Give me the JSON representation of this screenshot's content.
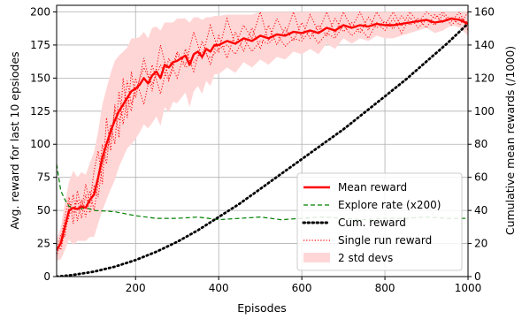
{
  "chart_data": {
    "type": "line",
    "xlabel": "Episodes",
    "ylabel": "Avg. reward for last 10 epsiodes",
    "y2label": "Cumulative mean rewards (/1000)",
    "xlim": [
      10,
      1000
    ],
    "ylim": [
      0,
      205
    ],
    "y2lim": [
      0,
      164
    ],
    "xticks": [
      200,
      400,
      600,
      800,
      1000
    ],
    "yticks": [
      0,
      25,
      50,
      75,
      100,
      125,
      150,
      175,
      200
    ],
    "y2ticks": [
      0,
      20,
      40,
      60,
      80,
      100,
      120,
      140,
      160
    ],
    "grid": true,
    "legend_placement": "lower-right",
    "legend": [
      {
        "name": "Mean reward",
        "style": "solid-thick",
        "color": "#ff0000"
      },
      {
        "name": "Explore rate (x200)",
        "style": "dashed",
        "color": "#008000"
      },
      {
        "name": "Cum. reward",
        "style": "dotted-thick",
        "color": "#000000"
      },
      {
        "name": "Single run reward",
        "style": "dotted",
        "color": "#ff0000"
      },
      {
        "name": "2 std devs",
        "style": "band",
        "color": "#ffd6d6"
      }
    ],
    "series": [
      {
        "name": "Mean reward",
        "axis": "left",
        "x": [
          10,
          20,
          30,
          40,
          50,
          60,
          70,
          80,
          90,
          100,
          110,
          120,
          130,
          140,
          150,
          160,
          170,
          180,
          190,
          200,
          210,
          220,
          230,
          240,
          250,
          260,
          270,
          280,
          290,
          300,
          310,
          320,
          330,
          340,
          350,
          360,
          370,
          380,
          390,
          400,
          420,
          440,
          460,
          480,
          500,
          520,
          540,
          560,
          580,
          600,
          620,
          640,
          660,
          680,
          700,
          720,
          740,
          760,
          780,
          800,
          820,
          840,
          860,
          880,
          900,
          920,
          940,
          960,
          980,
          1000
        ],
        "values": [
          20,
          25,
          38,
          50,
          52,
          51,
          53,
          52,
          58,
          62,
          75,
          90,
          100,
          110,
          118,
          125,
          130,
          135,
          140,
          142,
          145,
          150,
          146,
          152,
          155,
          150,
          160,
          158,
          162,
          163,
          165,
          167,
          160,
          168,
          170,
          166,
          172,
          170,
          175,
          175,
          178,
          176,
          180,
          178,
          182,
          180,
          183,
          182,
          185,
          184,
          186,
          184,
          188,
          186,
          190,
          188,
          190,
          189,
          191,
          190,
          190,
          191,
          192,
          193,
          194,
          192,
          193,
          195,
          194,
          191
        ]
      },
      {
        "name": "Explore rate (x200)",
        "axis": "left",
        "x": [
          10,
          20,
          30,
          40,
          60,
          80,
          100,
          150,
          200,
          250,
          300,
          350,
          400,
          450,
          500,
          550,
          600,
          650,
          700,
          750,
          800,
          850,
          900,
          950,
          1000
        ],
        "values": [
          85,
          65,
          58,
          53,
          51,
          52,
          50,
          49,
          46,
          44,
          44,
          45,
          43,
          44,
          45,
          43,
          44,
          45,
          44,
          43,
          44,
          44,
          45,
          44,
          44
        ]
      },
      {
        "name": "Cum. reward",
        "axis": "right",
        "x": [
          10,
          50,
          100,
          150,
          200,
          250,
          300,
          350,
          400,
          450,
          500,
          550,
          600,
          650,
          700,
          750,
          800,
          850,
          900,
          950,
          1000
        ],
        "values": [
          0,
          1,
          3,
          6,
          10,
          15,
          21,
          28,
          36,
          44,
          53,
          62,
          71,
          80,
          89,
          99,
          109,
          119,
          130,
          141,
          153
        ]
      }
    ],
    "single_runs": [
      {
        "name": "Single run reward",
        "x": [
          10,
          20,
          30,
          40,
          50,
          60,
          70,
          80,
          90,
          100,
          110,
          120,
          130,
          140,
          150,
          160,
          170,
          180,
          190,
          200,
          220,
          240,
          260,
          280,
          300,
          320,
          340,
          360,
          380,
          400,
          420,
          440,
          460,
          480,
          500,
          520,
          540,
          560,
          580,
          600,
          620,
          640,
          660,
          680,
          700,
          720,
          740,
          760,
          780,
          800,
          820,
          840,
          860,
          880,
          900,
          920,
          940,
          960,
          980,
          1000
        ],
        "values": [
          15,
          28,
          45,
          60,
          40,
          65,
          50,
          70,
          55,
          80,
          95,
          70,
          120,
          95,
          130,
          105,
          150,
          120,
          155,
          135,
          165,
          140,
          175,
          150,
          170,
          160,
          185,
          165,
          190,
          170,
          195,
          175,
          190,
          180,
          200,
          178,
          195,
          182,
          200,
          180,
          198,
          185,
          200,
          183,
          200,
          188,
          200,
          186,
          200,
          190,
          200,
          189,
          200,
          192,
          200,
          195,
          200,
          193,
          200,
          186
        ]
      },
      {
        "name": "Single run reward",
        "x": [
          10,
          20,
          30,
          40,
          50,
          60,
          70,
          80,
          90,
          100,
          110,
          120,
          130,
          140,
          150,
          160,
          170,
          180,
          190,
          200,
          220,
          240,
          260,
          280,
          300,
          320,
          340,
          360,
          380,
          400,
          420,
          440,
          460,
          480,
          500,
          520,
          540,
          560,
          580,
          600,
          620,
          640,
          660,
          680,
          700,
          720,
          740,
          760,
          780,
          800,
          820,
          840,
          860,
          880,
          900,
          920,
          940,
          960,
          980,
          1000
        ],
        "values": [
          25,
          20,
          35,
          45,
          62,
          42,
          58,
          45,
          65,
          50,
          70,
          100,
          85,
          115,
          100,
          140,
          115,
          135,
          125,
          150,
          130,
          160,
          138,
          165,
          150,
          172,
          155,
          178,
          160,
          182,
          165,
          185,
          170,
          188,
          172,
          190,
          175,
          188,
          178,
          192,
          180,
          190,
          182,
          195,
          185,
          192,
          184,
          196,
          188,
          193,
          187,
          197,
          190,
          195,
          188,
          198,
          192,
          196,
          190,
          200
        ]
      },
      {
        "name": "Single run reward",
        "x": [
          10,
          20,
          30,
          40,
          50,
          60,
          70,
          80,
          90,
          100,
          110,
          120,
          130,
          140,
          150,
          160,
          170,
          180,
          190,
          200,
          220,
          240,
          260,
          280,
          300,
          320,
          340,
          360,
          380,
          400,
          420,
          440,
          460,
          480,
          500,
          520,
          540,
          560,
          580,
          600,
          620,
          640,
          660,
          680,
          700,
          720,
          740,
          760,
          780,
          800,
          820,
          840,
          860,
          880,
          900,
          920,
          940,
          960,
          980,
          1000
        ],
        "values": [
          18,
          32,
          30,
          55,
          48,
          58,
          44,
          62,
          48,
          68,
          60,
          85,
          95,
          105,
          125,
          118,
          125,
          148,
          130,
          140,
          158,
          145,
          160,
          148,
          168,
          158,
          162,
          170,
          165,
          172,
          175,
          168,
          180,
          170,
          178,
          176,
          183,
          174,
          180,
          178,
          186,
          176,
          184,
          180,
          190,
          182,
          188,
          180,
          192,
          186,
          195,
          184,
          196,
          188,
          194,
          190,
          198,
          190,
          196,
          192
        ]
      }
    ],
    "band": {
      "name": "2 std devs",
      "x": [
        10,
        20,
        30,
        40,
        50,
        60,
        70,
        80,
        90,
        100,
        110,
        120,
        130,
        140,
        150,
        160,
        170,
        180,
        190,
        200,
        210,
        220,
        230,
        240,
        250,
        260,
        270,
        280,
        290,
        300,
        310,
        320,
        330,
        340,
        350,
        360,
        370,
        380,
        390,
        400,
        420,
        440,
        460,
        480,
        500,
        520,
        540,
        560,
        580,
        600,
        620,
        640,
        660,
        680,
        700,
        720,
        740,
        760,
        780,
        800,
        820,
        840,
        860,
        880,
        900,
        920,
        940,
        960,
        980,
        1000
      ],
      "values": [
        20,
        25,
        38,
        50,
        52,
        51,
        53,
        52,
        58,
        62,
        75,
        90,
        100,
        110,
        118,
        125,
        130,
        135,
        140,
        142,
        145,
        150,
        146,
        152,
        155,
        150,
        160,
        158,
        162,
        163,
        165,
        167,
        160,
        168,
        170,
        166,
        172,
        170,
        175,
        175,
        178,
        176,
        180,
        178,
        182,
        180,
        183,
        182,
        185,
        184,
        186,
        184,
        188,
        186,
        190,
        188,
        190,
        189,
        191,
        190,
        190,
        191,
        192,
        193,
        194,
        192,
        193,
        195,
        194,
        191
      ],
      "spread": [
        8,
        12,
        18,
        22,
        28,
        24,
        26,
        25,
        28,
        32,
        35,
        40,
        42,
        44,
        45,
        42,
        40,
        38,
        40,
        38,
        36,
        35,
        34,
        36,
        34,
        36,
        32,
        34,
        30,
        32,
        30,
        28,
        32,
        28,
        26,
        28,
        24,
        26,
        22,
        22,
        20,
        22,
        18,
        20,
        18,
        20,
        17,
        18,
        15,
        16,
        14,
        16,
        12,
        14,
        10,
        12,
        10,
        11,
        9,
        10,
        10,
        9,
        8,
        7,
        6,
        8,
        7,
        5,
        6,
        9
      ]
    }
  }
}
